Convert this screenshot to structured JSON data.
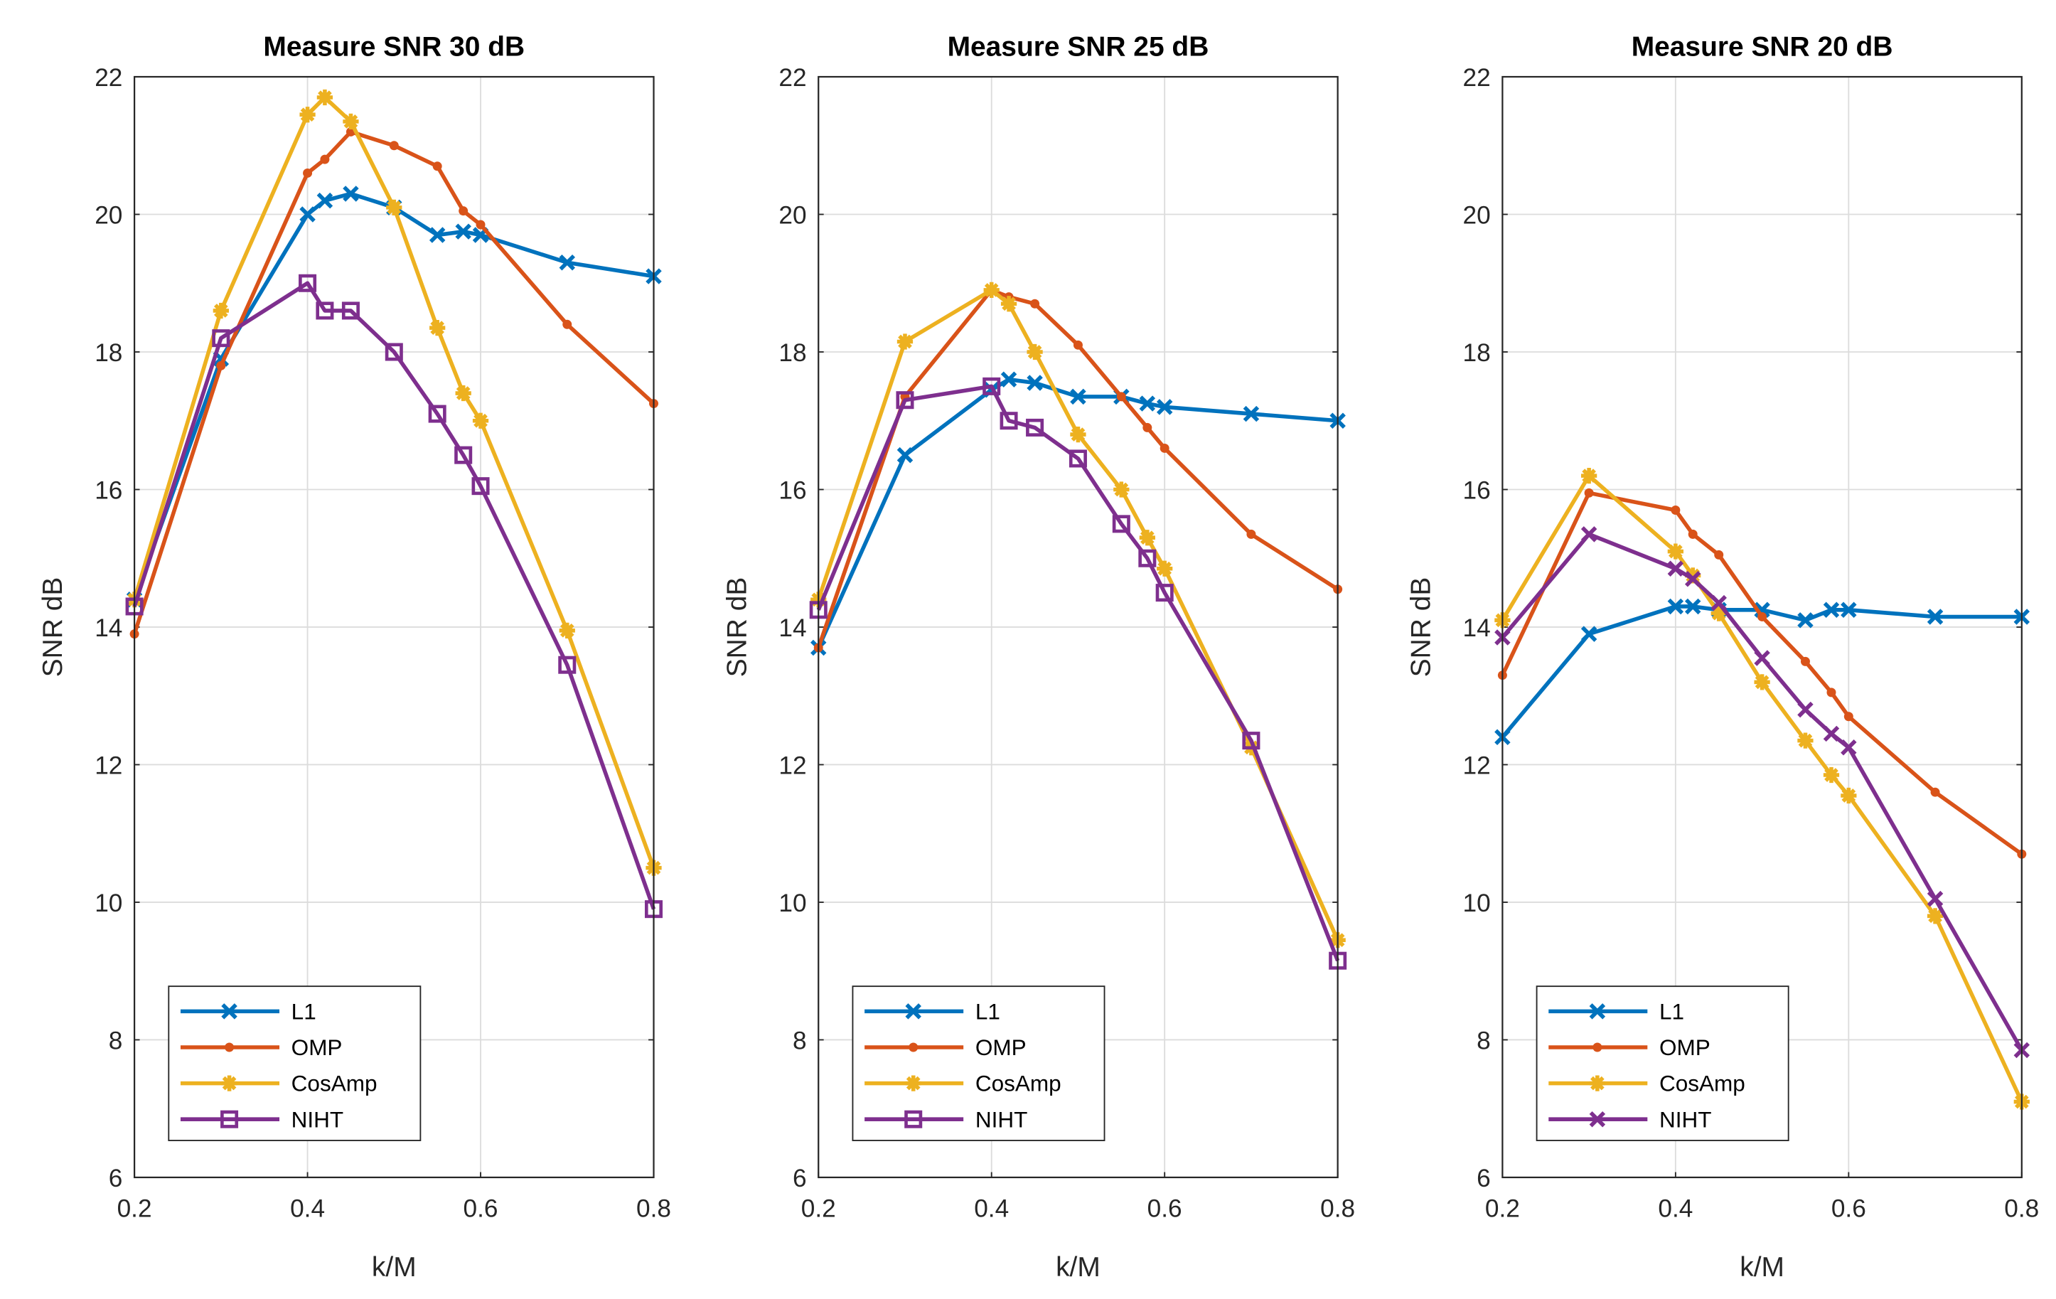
{
  "colors": {
    "L1": "#0072BD",
    "OMP": "#D95319",
    "CosAmp": "#EDB120",
    "NIHT": "#7E2F8E"
  },
  "chart_data": [
    {
      "type": "line",
      "title": "Measure SNR 30 dB",
      "xlabel": "k/M",
      "ylabel": "SNR dB",
      "xlim": [
        0.2,
        0.8
      ],
      "ylim": [
        6,
        22
      ],
      "xticks": [
        "0.2",
        "0.4",
        "0.6",
        "0.8"
      ],
      "yticks": [
        "6",
        "8",
        "10",
        "12",
        "14",
        "16",
        "18",
        "20",
        "22"
      ],
      "grid": true,
      "legend_position": "bottom-left",
      "x": [
        0.2,
        0.3,
        0.4,
        0.42,
        0.45,
        0.5,
        0.55,
        0.58,
        0.6,
        0.7,
        0.8
      ],
      "series": [
        {
          "name": "L1",
          "marker": "x",
          "values": [
            14.4,
            17.9,
            20.0,
            20.2,
            20.3,
            20.1,
            19.7,
            19.75,
            19.7,
            19.3,
            19.1
          ]
        },
        {
          "name": "OMP",
          "marker": "dot",
          "values": [
            13.9,
            17.8,
            20.6,
            20.8,
            21.2,
            21.0,
            20.7,
            20.05,
            19.85,
            18.4,
            17.25
          ]
        },
        {
          "name": "CosAmp",
          "marker": "star",
          "values": [
            14.4,
            18.6,
            21.45,
            21.7,
            21.35,
            20.1,
            18.35,
            17.4,
            17.0,
            13.95,
            10.5
          ]
        },
        {
          "name": "NIHT",
          "marker": "square",
          "values": [
            14.3,
            18.2,
            19.0,
            18.6,
            18.6,
            18.0,
            17.1,
            16.5,
            16.05,
            13.45,
            9.9
          ]
        }
      ]
    },
    {
      "type": "line",
      "title": "Measure SNR 25 dB",
      "xlabel": "k/M",
      "ylabel": "SNR dB",
      "xlim": [
        0.2,
        0.8
      ],
      "ylim": [
        6,
        22
      ],
      "xticks": [
        "0.2",
        "0.4",
        "0.6",
        "0.8"
      ],
      "yticks": [
        "6",
        "8",
        "10",
        "12",
        "14",
        "16",
        "18",
        "20",
        "22"
      ],
      "grid": true,
      "legend_position": "bottom-left",
      "x": [
        0.2,
        0.3,
        0.4,
        0.42,
        0.45,
        0.5,
        0.55,
        0.58,
        0.6,
        0.7,
        0.8
      ],
      "series": [
        {
          "name": "L1",
          "marker": "x",
          "values": [
            13.7,
            16.5,
            17.45,
            17.6,
            17.55,
            17.35,
            17.35,
            17.25,
            17.2,
            17.1,
            17.0
          ]
        },
        {
          "name": "OMP",
          "marker": "dot",
          "values": [
            13.7,
            17.35,
            18.9,
            18.8,
            18.7,
            18.1,
            17.35,
            16.9,
            16.6,
            15.35,
            14.55
          ]
        },
        {
          "name": "CosAmp",
          "marker": "star",
          "values": [
            14.4,
            18.15,
            18.9,
            18.7,
            18.0,
            16.8,
            16.0,
            15.3,
            14.85,
            12.25,
            9.45
          ]
        },
        {
          "name": "NIHT",
          "marker": "square",
          "values": [
            14.25,
            17.3,
            17.5,
            17.0,
            16.9,
            16.45,
            15.5,
            15.0,
            14.5,
            12.35,
            9.15
          ]
        }
      ]
    },
    {
      "type": "line",
      "title": "Measure SNR 20 dB",
      "xlabel": "k/M",
      "ylabel": "SNR dB",
      "xlim": [
        0.2,
        0.8
      ],
      "ylim": [
        6,
        22
      ],
      "xticks": [
        "0.2",
        "0.4",
        "0.6",
        "0.8"
      ],
      "yticks": [
        "6",
        "8",
        "10",
        "12",
        "14",
        "16",
        "18",
        "20",
        "22"
      ],
      "grid": true,
      "legend_position": "bottom-left",
      "x": [
        0.2,
        0.3,
        0.4,
        0.42,
        0.45,
        0.5,
        0.55,
        0.58,
        0.6,
        0.7,
        0.8
      ],
      "series": [
        {
          "name": "L1",
          "marker": "x",
          "values": [
            12.4,
            13.9,
            14.3,
            14.3,
            14.25,
            14.25,
            14.1,
            14.25,
            14.25,
            14.15,
            14.15
          ]
        },
        {
          "name": "OMP",
          "marker": "dot",
          "values": [
            13.3,
            15.95,
            15.7,
            15.35,
            15.05,
            14.15,
            13.5,
            13.05,
            12.7,
            11.6,
            10.7
          ]
        },
        {
          "name": "CosAmp",
          "marker": "star",
          "values": [
            14.1,
            16.2,
            15.1,
            14.75,
            14.2,
            13.2,
            12.35,
            11.85,
            11.55,
            9.8,
            7.1
          ]
        },
        {
          "name": "NIHT",
          "marker": "x",
          "values": [
            13.85,
            15.35,
            14.85,
            14.7,
            14.35,
            13.55,
            12.8,
            12.45,
            12.25,
            10.05,
            7.85
          ]
        }
      ]
    }
  ]
}
